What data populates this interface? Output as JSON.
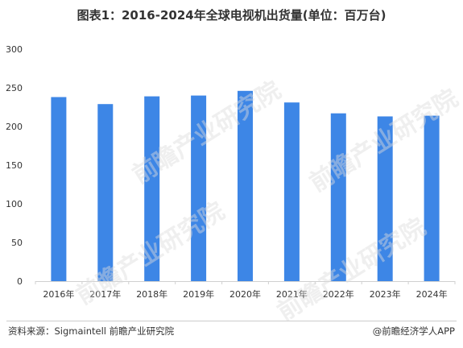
{
  "chart_data": {
    "type": "bar",
    "title": "图表1：2016-2024年全球电视机出货量(单位：百万台)",
    "categories": [
      "2016年",
      "2017年",
      "2018年",
      "2019年",
      "2020年",
      "2021年",
      "2022年",
      "2023年",
      "2024年"
    ],
    "values": [
      238,
      229,
      239,
      240,
      246,
      231,
      217,
      213,
      214
    ],
    "ylim": [
      0,
      300
    ],
    "yticks": [
      "0",
      "50",
      "100",
      "150",
      "200",
      "250",
      "300"
    ],
    "grid": false,
    "legend": "none",
    "bar_color": "#3d86e6"
  },
  "watermark": {
    "text": "前瞻产业研究院"
  },
  "footer": {
    "source": "资料来源：Sigmaintell 前瞻产业研究院",
    "brand": "@前瞻经济学人APP"
  }
}
